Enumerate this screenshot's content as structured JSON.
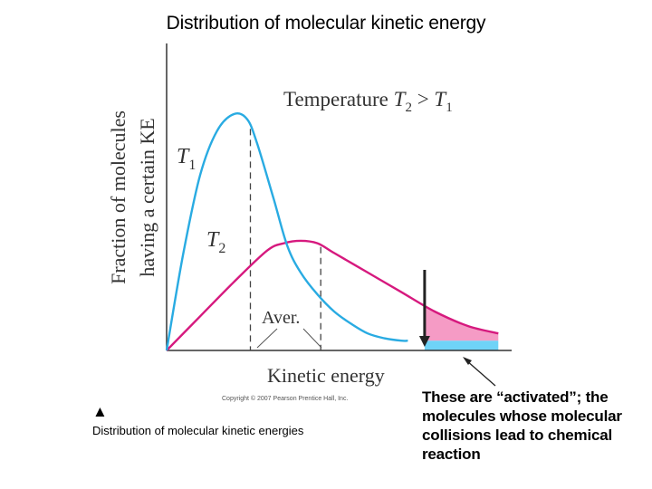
{
  "title": "Distribution of molecular kinetic energy",
  "caption": {
    "marker": "▲",
    "text": "Distribution of molecular kinetic energies"
  },
  "note": "These are “activated”; the molecules whose molecular collisions lead to chemical reaction",
  "copyright": "Copyright © 2007 Pearson Prentice Hall, Inc.",
  "chart_data": {
    "type": "line",
    "xlabel": "Kinetic energy",
    "ylabel": "Fraction of molecules having a certain KE",
    "xlim": [
      0,
      100
    ],
    "ylim": [
      0,
      100
    ],
    "grid": false,
    "legend": "none",
    "header_label": "Temperature T2 > T1",
    "average_label": "Aver.",
    "series": [
      {
        "name": "T1",
        "color": "#29abe2",
        "x": [
          0,
          5,
          10,
          15,
          20,
          24,
          27,
          32,
          36,
          40,
          45,
          50,
          55,
          60,
          65,
          70,
          72
        ],
        "y": [
          0,
          40,
          72,
          90,
          97,
          95,
          85,
          62,
          43,
          32,
          23,
          16,
          11,
          7,
          5,
          4,
          4
        ],
        "average_x": 25
      },
      {
        "name": "T2",
        "color": "#d6197e",
        "x": [
          0,
          10,
          20,
          30,
          35,
          40,
          45,
          50,
          60,
          70,
          80,
          90,
          99
        ],
        "y": [
          0,
          14,
          28,
          41,
          44,
          45,
          44,
          40,
          32,
          24,
          16,
          10,
          7
        ],
        "average_x": 46
      }
    ],
    "activation_threshold_x": 77,
    "activated_fill_colors": {
      "T1": "#6fd3f7",
      "T2": "#f59bc5"
    }
  }
}
